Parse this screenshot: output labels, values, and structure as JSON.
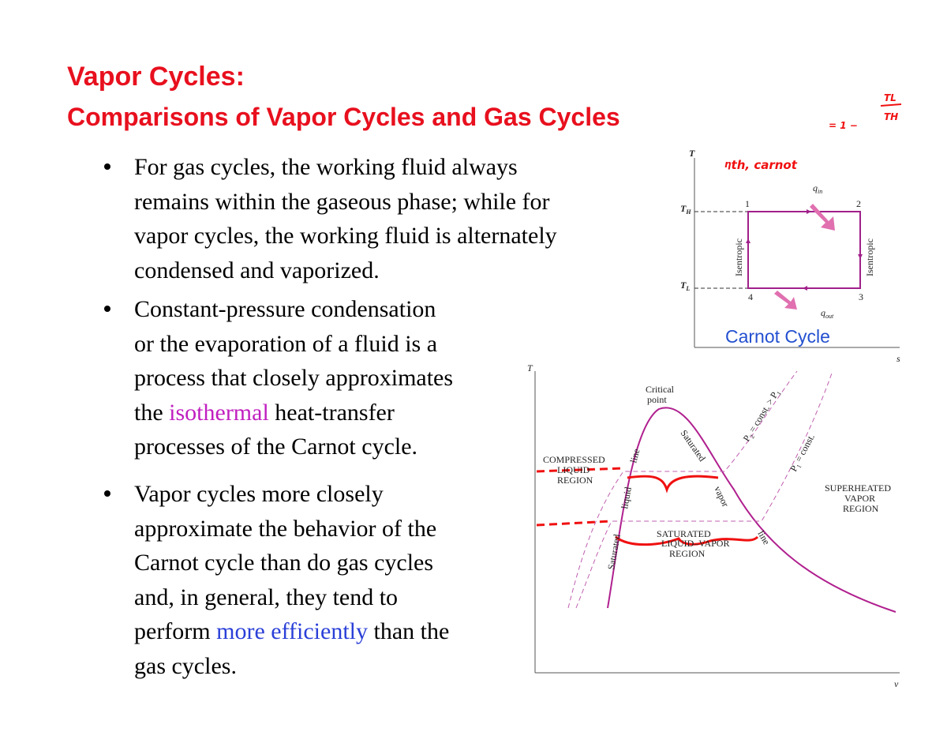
{
  "header": {
    "title": "Vapor Cycles:",
    "subtitle": "Comparisons of Vapor Cycles and Gas Cycles"
  },
  "bullets": [
    {
      "lines": [
        "For gas cycles, the working fluid always",
        "remains within the gaseous phase; while for",
        "vapor cycles, the working fluid is alternately",
        "condensed and vaporized."
      ]
    },
    {
      "lines": [
        "Constant-pressure condensation",
        "or the evaporation of a fluid is a",
        "process that closely approximates",
        [
          "the ",
          "isothermal",
          " heat-transfer"
        ],
        "processes of the Carnot cycle."
      ]
    },
    {
      "lines": [
        "Vapor cycles more closely",
        "approximate the behavior of the",
        "Carnot cycle than do gas cycles",
        "and, in general, they tend to",
        [
          "perform ",
          "more efficiently",
          " than the"
        ],
        "gas cycles."
      ]
    }
  ],
  "carnot_diagram": {
    "axis_t": "T",
    "axis_s": "s",
    "t_high": {
      "main": "T",
      "sub": "H"
    },
    "t_low": {
      "main": "T",
      "sub": "L"
    },
    "states": [
      "1",
      "2",
      "3",
      "4"
    ],
    "q_in": {
      "main": "q",
      "sub": "in"
    },
    "q_out": {
      "main": "q",
      "sub": "out"
    },
    "side_labels": [
      "Isentropic",
      "Isentropic"
    ],
    "caption": "Carnot Cycle"
  },
  "tv_diagram": {
    "axis_t": "T",
    "axis_v": "v",
    "critical_point": [
      "Critical",
      "point"
    ],
    "compressed_region": [
      "COMPRESSED",
      "LIQUID",
      "REGION"
    ],
    "saturated_region": [
      "SATURATED",
      "LIQUID–VAPOR",
      "REGION"
    ],
    "superheated_region": [
      "SUPERHEATED",
      "VAPOR",
      "REGION"
    ],
    "saturated_liquid_line": [
      "Saturated",
      "liquid",
      "line"
    ],
    "saturated_vapor_line": [
      "Saturated",
      "vapor",
      "line"
    ],
    "p2_label": [
      "P",
      "2",
      " = const. > P",
      "1"
    ],
    "p1_label": [
      "P",
      "1",
      " = const."
    ]
  },
  "annotations": {
    "efficiency": {
      "main": "η",
      "sub": "th, carnot"
    },
    "formula": {
      "prefix": "= 1 −",
      "numerator": "TL",
      "denominator": "TH"
    }
  }
}
